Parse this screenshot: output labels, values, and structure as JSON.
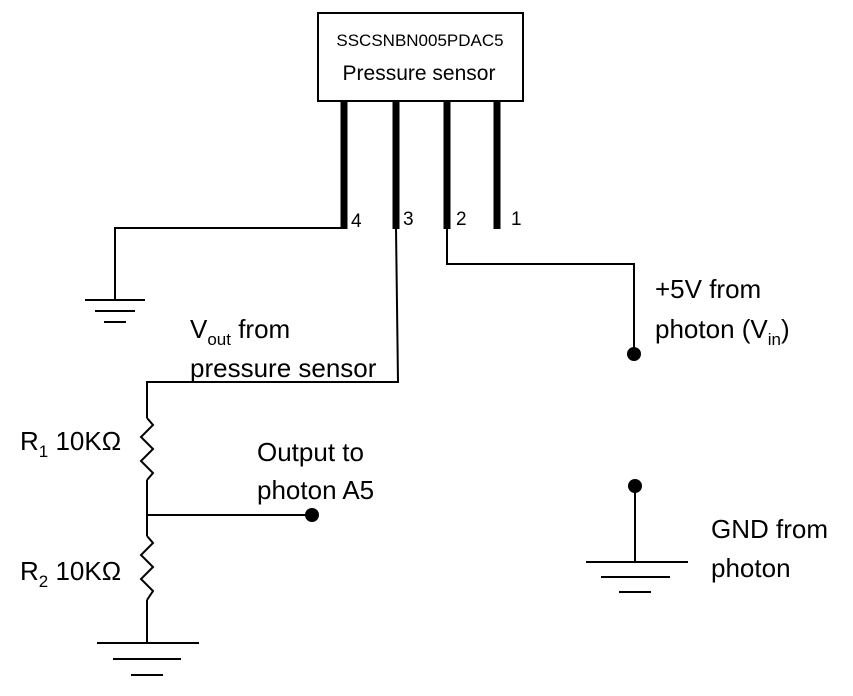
{
  "sensor": {
    "part_number": "SSCSNBN005PDAC5",
    "title": "Pressure sensor"
  },
  "pins": {
    "pin4": "4",
    "pin3": "3",
    "pin2": "2",
    "pin1": "1"
  },
  "labels": {
    "vout": {
      "main": "V",
      "sub": "out",
      "rest": " from",
      "line2": "pressure sensor"
    },
    "vin": {
      "line1": "+5V from",
      "line2_pre": "photon (V",
      "line2_sub": "in",
      "line2_post": ")"
    },
    "r1": {
      "main": "R",
      "sub": "1",
      "value": " 10KΩ"
    },
    "r2": {
      "main": "R",
      "sub": "2",
      "value": " 10KΩ"
    },
    "output": {
      "line1": "Output to",
      "line2": "photon A5"
    },
    "gnd": {
      "line1": "GND from",
      "line2": "photon"
    }
  }
}
